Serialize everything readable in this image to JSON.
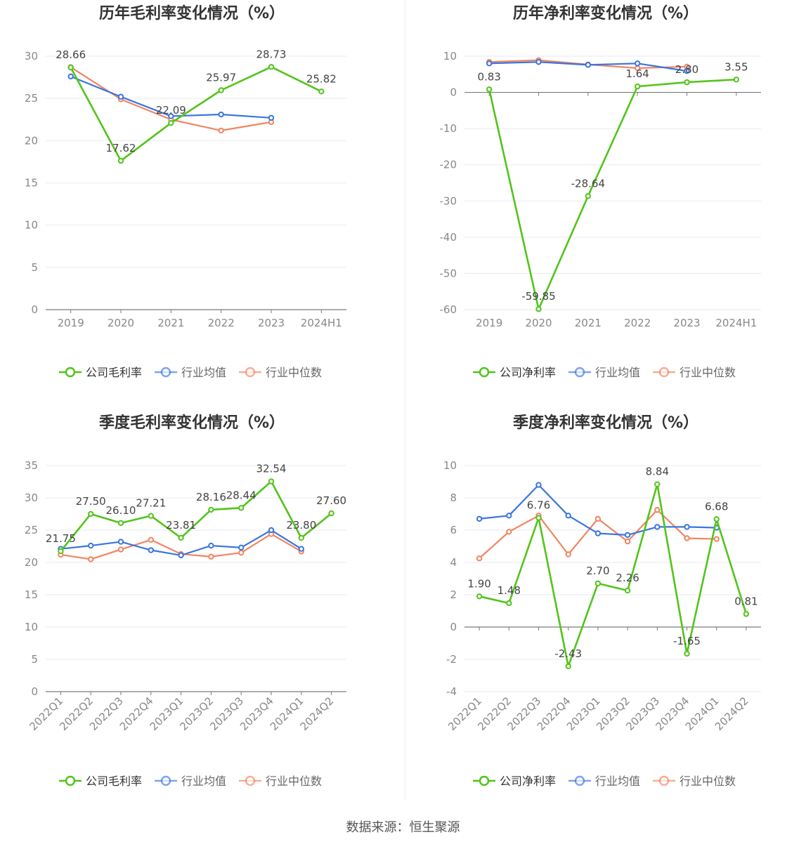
{
  "colors": {
    "company": "#52c41a",
    "average": "#3a75e0",
    "median": "#f08561",
    "axis": "#888888",
    "grid": "#e8eaf2",
    "label": "#444444",
    "title": "#333333"
  },
  "footer": "数据来源：恒生聚源",
  "chart_data": [
    {
      "type": "line",
      "title": "历年毛利率变化情况（%）",
      "categories": [
        "2019",
        "2020",
        "2021",
        "2022",
        "2023",
        "2024H1"
      ],
      "ylim": [
        0,
        30
      ],
      "yticks": [
        0,
        5,
        10,
        15,
        20,
        25,
        30
      ],
      "grid": true,
      "legend": "bottom",
      "series": [
        {
          "name": "公司毛利率",
          "role": "company",
          "values": [
            28.66,
            17.62,
            22.09,
            25.97,
            28.73,
            25.82
          ],
          "labels": [
            "28.66",
            "17.62",
            "22.09",
            "25.97",
            "28.73",
            "25.82"
          ]
        },
        {
          "name": "行业均值",
          "role": "average",
          "values": [
            27.6,
            25.2,
            22.9,
            23.1,
            22.7,
            null
          ]
        },
        {
          "name": "行业中位数",
          "role": "median",
          "values": [
            28.7,
            24.9,
            22.5,
            21.2,
            22.2,
            null
          ]
        }
      ]
    },
    {
      "type": "line",
      "title": "历年净利率变化情况（%）",
      "categories": [
        "2019",
        "2020",
        "2021",
        "2022",
        "2023",
        "2024H1"
      ],
      "ylim": [
        -60,
        10
      ],
      "yticks": [
        -60,
        -50,
        -40,
        -30,
        -20,
        -10,
        0,
        10
      ],
      "grid": true,
      "legend": "bottom",
      "series": [
        {
          "name": "公司净利率",
          "role": "company",
          "values": [
            0.83,
            -59.85,
            -28.64,
            1.64,
            2.8,
            3.55
          ],
          "labels": [
            "0.83",
            "-59.85",
            "-28.64",
            "1.64",
            "2.80",
            "3.55"
          ]
        },
        {
          "name": "行业均值",
          "role": "average",
          "values": [
            8.0,
            8.4,
            7.6,
            8.0,
            5.9,
            null
          ]
        },
        {
          "name": "行业中位数",
          "role": "median",
          "values": [
            8.4,
            8.9,
            7.7,
            6.7,
            7.1,
            null
          ]
        }
      ]
    },
    {
      "type": "line",
      "title": "季度毛利率变化情况（%）",
      "categories": [
        "2022Q1",
        "2022Q2",
        "2022Q3",
        "2022Q4",
        "2023Q1",
        "2023Q2",
        "2023Q3",
        "2023Q4",
        "2024Q1",
        "2024Q2"
      ],
      "ylim": [
        0,
        35
      ],
      "yticks": [
        0,
        5,
        10,
        15,
        20,
        25,
        30,
        35
      ],
      "grid": true,
      "legend": "bottom",
      "series": [
        {
          "name": "公司毛利率",
          "role": "company",
          "values": [
            21.75,
            27.5,
            26.1,
            27.21,
            23.81,
            28.16,
            28.44,
            32.54,
            23.8,
            27.6
          ],
          "labels": [
            "21.75",
            "27.50",
            "26.10",
            "27.21",
            "23.81",
            "28.16",
            "28.44",
            "32.54",
            "23.80",
            "27.60"
          ]
        },
        {
          "name": "行业均值",
          "role": "average",
          "values": [
            22.1,
            22.6,
            23.2,
            21.9,
            21.1,
            22.6,
            22.3,
            25.0,
            22.1,
            null
          ]
        },
        {
          "name": "行业中位数",
          "role": "median",
          "values": [
            21.2,
            20.5,
            22.0,
            23.5,
            21.3,
            20.9,
            21.5,
            24.4,
            21.7,
            null
          ]
        }
      ]
    },
    {
      "type": "line",
      "title": "季度净利率变化情况（%）",
      "categories": [
        "2022Q1",
        "2022Q2",
        "2022Q3",
        "2022Q4",
        "2023Q1",
        "2023Q2",
        "2023Q3",
        "2023Q4",
        "2024Q1",
        "2024Q2"
      ],
      "ylim": [
        -4,
        10
      ],
      "yticks": [
        -4,
        -2,
        0,
        2,
        4,
        6,
        8,
        10
      ],
      "grid": true,
      "legend": "bottom",
      "series": [
        {
          "name": "公司净利率",
          "role": "company",
          "values": [
            1.9,
            1.48,
            6.76,
            -2.43,
            2.7,
            2.26,
            8.84,
            -1.65,
            6.68,
            0.81
          ],
          "labels": [
            "1.90",
            "1.48",
            "6.76",
            "-2.43",
            "2.70",
            "2.26",
            "8.84",
            "-1.65",
            "6.68",
            "0.81"
          ]
        },
        {
          "name": "行业均值",
          "role": "average",
          "values": [
            6.7,
            6.9,
            8.8,
            6.9,
            5.8,
            5.7,
            6.2,
            6.2,
            6.15,
            null
          ]
        },
        {
          "name": "行业中位数",
          "role": "median",
          "values": [
            4.25,
            5.9,
            6.9,
            4.5,
            6.7,
            5.3,
            7.25,
            5.5,
            5.45,
            null
          ]
        }
      ]
    }
  ]
}
